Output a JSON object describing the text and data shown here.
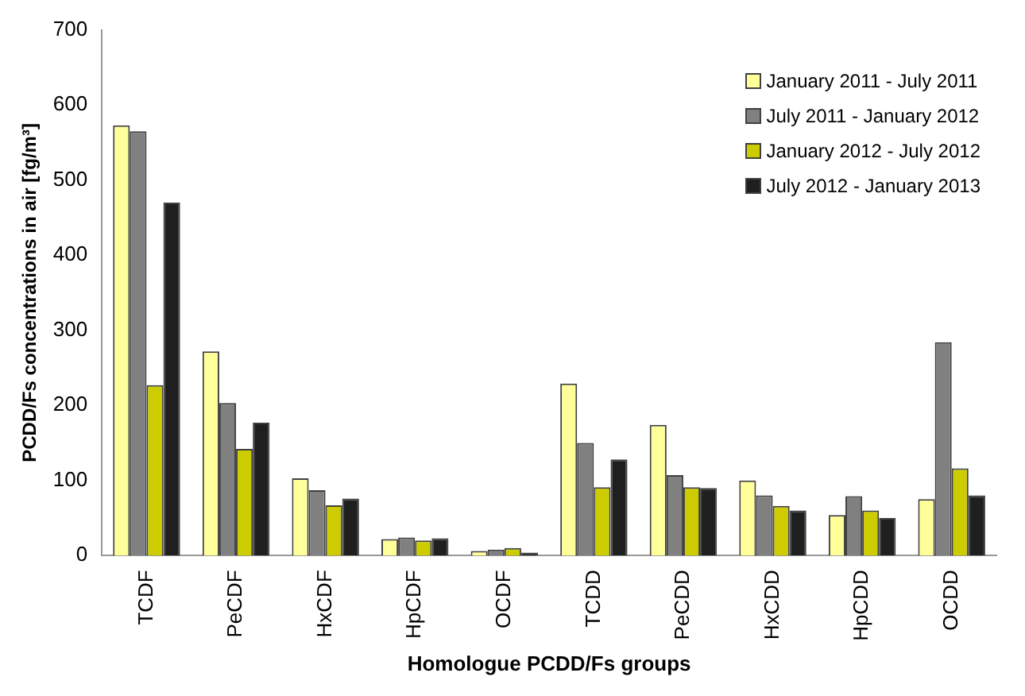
{
  "chart_data": {
    "type": "bar",
    "xlabel": "Homologue PCDD/Fs groups",
    "ylabel": "PCDD/Fs concentrations in air [fg/m³]",
    "categories": [
      "TCDF",
      "PeCDF",
      "HxCDF",
      "HpCDF",
      "OCDF",
      "TCDD",
      "PeCDD",
      "HxCDD",
      "HpCDD",
      "OCDD"
    ],
    "series": [
      {
        "name": "January 2011 - July 2011",
        "color": "#ffff99",
        "values": [
          573,
          272,
          103,
          22,
          6,
          229,
          174,
          100,
          54,
          75
        ]
      },
      {
        "name": "July 2011 - January 2012",
        "color": "#808080",
        "values": [
          565,
          203,
          87,
          24,
          8,
          150,
          107,
          80,
          79,
          284
        ]
      },
      {
        "name": "January 2012 - July 2012",
        "color": "#cccc00",
        "values": [
          227,
          142,
          67,
          20,
          10,
          91,
          91,
          66,
          60,
          116
        ]
      },
      {
        "name": "July 2012 - January 2013",
        "color": "#1f1f1f",
        "values": [
          470,
          177,
          76,
          23,
          4,
          128,
          90,
          60,
          50,
          80
        ]
      }
    ],
    "ylim": [
      0,
      700
    ],
    "yticks": [
      0,
      100,
      200,
      300,
      400,
      500,
      600,
      700
    ],
    "grid": false,
    "legend": "top right"
  }
}
